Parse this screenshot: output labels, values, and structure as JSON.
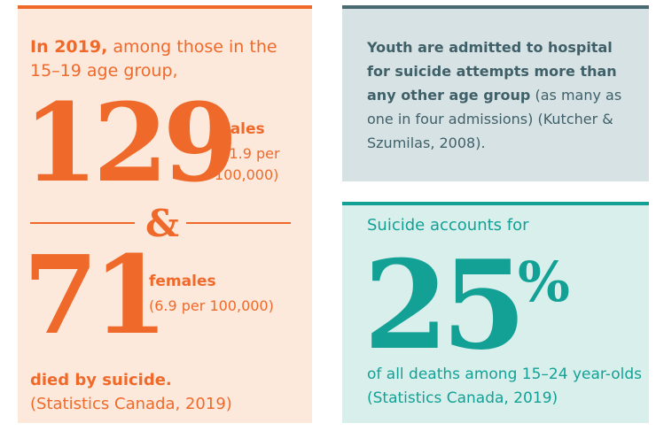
{
  "left_panel": {
    "intro_bold": "In 2019,",
    "intro_rest": " among those in the 15–19 age group,",
    "males_count": "129",
    "males_label": "males",
    "males_rate": "(11.9 per 100,000)",
    "ampersand": "&",
    "females_count": "71",
    "females_label": "females",
    "females_rate": "(6.9 per 100,000)",
    "outro_bold": "died by suicide.",
    "outro_source": "(Statistics Canada, 2019)"
  },
  "fact_panel": {
    "bold_text": "Youth are admitted to hospital for suicide attempts more than any other age group",
    "rest_text": " (as many as one in four admissions) (Kutcher & Szumilas, 2008)."
  },
  "stat_panel": {
    "intro": "Suicide accounts for",
    "value": "25",
    "unit": "%",
    "caption": "of all deaths among 15–24 year-olds (Statistics Canada, 2019)"
  },
  "colors": {
    "orange": "#ef6a2a",
    "peach_bg": "#fde8dc",
    "slate": "#4a6a72",
    "slate_bg": "#d7e2e4",
    "teal": "#13a196",
    "teal_bg": "#d8efec"
  }
}
